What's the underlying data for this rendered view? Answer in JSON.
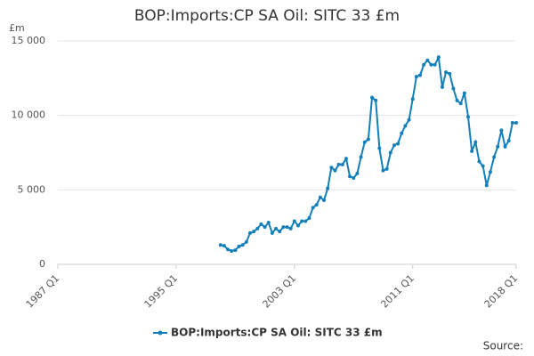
{
  "chart_data": {
    "type": "line",
    "title": "BOP:Imports:CP SA Oil: SITC 33 £m",
    "y_unit": "£m",
    "source": "Source:",
    "categories": [
      "1987 Q1",
      null,
      null,
      null,
      null,
      null,
      null,
      null,
      null,
      null,
      null,
      null,
      null,
      null,
      null,
      null,
      null,
      null,
      null,
      null,
      null,
      null,
      null,
      null,
      null,
      null,
      null,
      null,
      null,
      null,
      null,
      null,
      "1995 Q1",
      null,
      null,
      null,
      null,
      null,
      null,
      null,
      null,
      null,
      null,
      null,
      null,
      null,
      null,
      null,
      null,
      null,
      null,
      null,
      null,
      null,
      null,
      null,
      null,
      null,
      null,
      null,
      null,
      null,
      null,
      null,
      "2003 Q1",
      null,
      null,
      null,
      null,
      null,
      null,
      null,
      null,
      null,
      null,
      null,
      null,
      null,
      null,
      null,
      null,
      null,
      null,
      null,
      null,
      null,
      null,
      null,
      null,
      null,
      null,
      null,
      null,
      null,
      null,
      null,
      "2011 Q1",
      null,
      null,
      null,
      null,
      null,
      null,
      null,
      null,
      null,
      null,
      null,
      null,
      null,
      null,
      null,
      null,
      null,
      null,
      null,
      null,
      null,
      null,
      null,
      null,
      null,
      null,
      null,
      "2018 Q1"
    ],
    "series": [
      {
        "name": "BOP:Imports:CP SA Oil: SITC 33 £m",
        "color": "#137fbb",
        "values": [
          null,
          null,
          null,
          null,
          null,
          null,
          null,
          null,
          null,
          null,
          null,
          null,
          null,
          null,
          null,
          null,
          null,
          null,
          null,
          null,
          null,
          null,
          null,
          null,
          null,
          null,
          null,
          null,
          null,
          null,
          null,
          null,
          null,
          null,
          null,
          null,
          null,
          null,
          null,
          null,
          null,
          null,
          null,
          null,
          1300,
          1250,
          1000,
          900,
          950,
          1200,
          1300,
          1500,
          2100,
          2200,
          2400,
          2700,
          2500,
          2800,
          2100,
          2400,
          2200,
          2500,
          2500,
          2400,
          2900,
          2600,
          2900,
          2900,
          3100,
          3800,
          4000,
          4500,
          4300,
          5100,
          6500,
          6300,
          6700,
          6700,
          7100,
          5900,
          5800,
          6100,
          7200,
          8200,
          8400,
          11200,
          11000,
          7800,
          6300,
          6400,
          7500,
          8000,
          8100,
          8800,
          9300,
          9700,
          11100,
          12600,
          12700,
          13400,
          13700,
          13400,
          13400,
          13900,
          11900,
          12900,
          12800,
          11800,
          11000,
          10800,
          11500,
          9900,
          7600,
          8200,
          6900,
          6600,
          5300,
          6200,
          7200,
          7900,
          9000,
          7900,
          8300,
          9500,
          9500
        ]
      }
    ],
    "ylim": [
      0,
      15000
    ],
    "yticks": [
      0,
      {
        "value": 5000,
        "label": "5 000"
      },
      {
        "value": 10000,
        "label": "10 000"
      },
      {
        "value": 15000,
        "label": "15 000"
      }
    ],
    "grid": true
  }
}
